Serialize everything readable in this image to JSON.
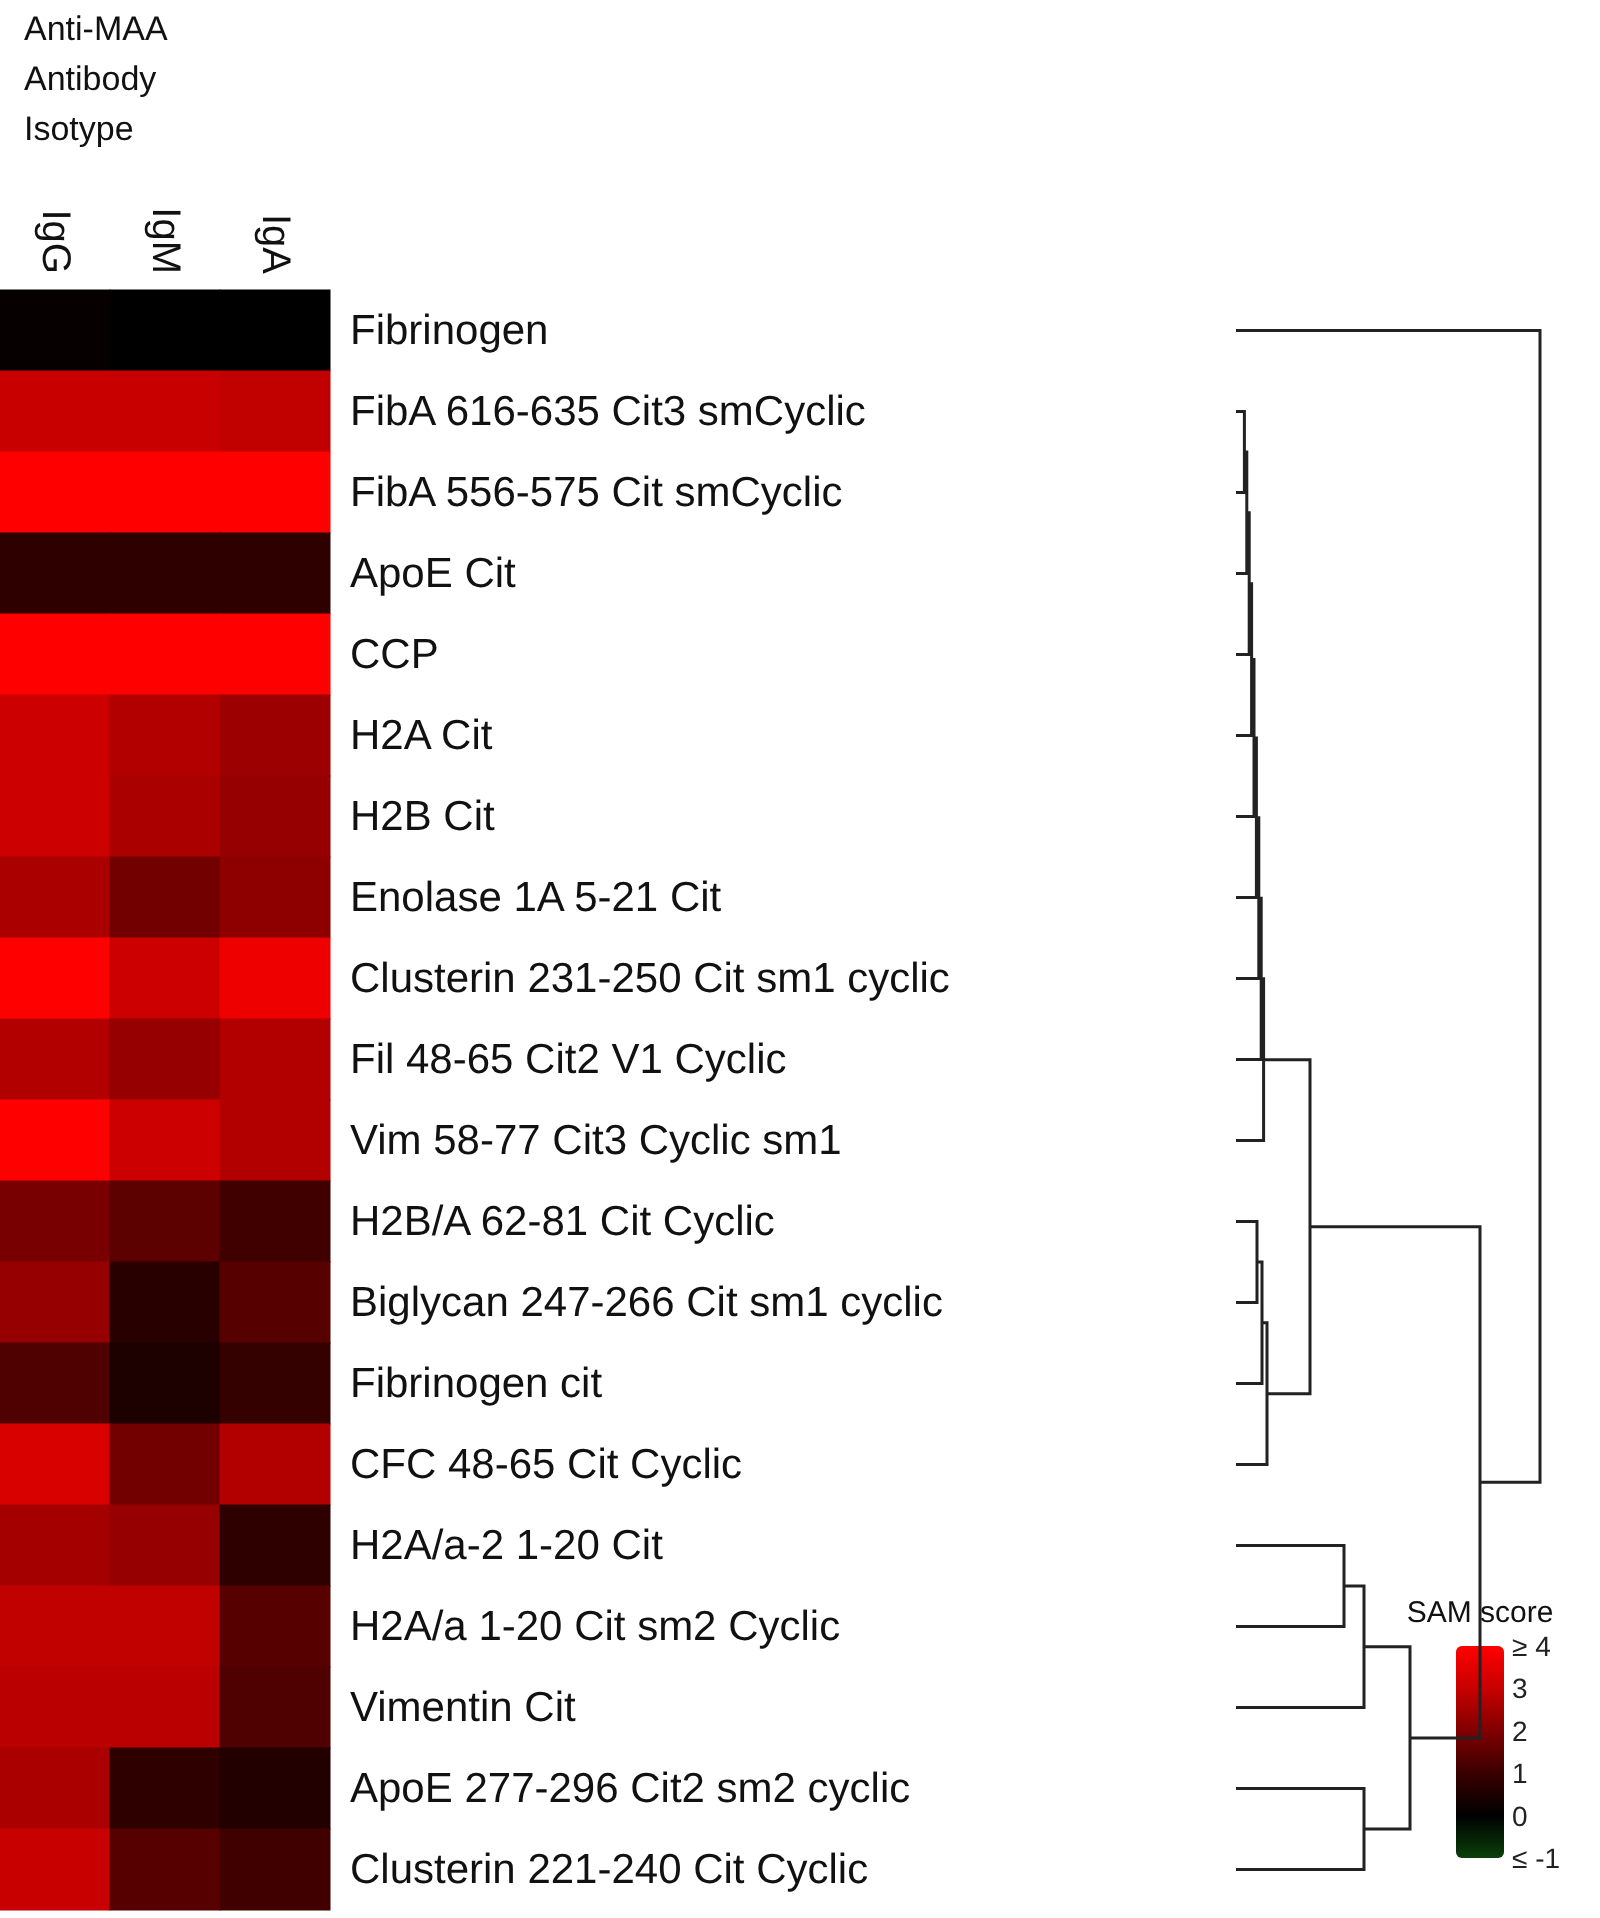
{
  "chart_data": {
    "type": "heatmap",
    "xlabel": "Anti-MAA Antibody Isotype",
    "clabel": "SAM score",
    "categories": [
      "IgG",
      "IgM",
      "IgA"
    ],
    "y_categories": [
      "Fibrinogen",
      "FibA 616-635 Cit3 smCyclic",
      "FibA 556-575 Cit smCyclic",
      "ApoE Cit",
      "CCP",
      "H2A Cit",
      "H2B Cit",
      "Enolase 1A 5-21 Cit",
      "Clusterin 231-250 Cit sm1 cyclic",
      "Fil 48-65 Cit2 V1 Cyclic",
      "Vim 58-77 Cit3 Cyclic sm1",
      "H2B/A 62-81 Cit Cyclic",
      "Biglycan 247-266 Cit sm1 cyclic",
      "Fibrinogen cit",
      "CFC 48-65 Cit Cyclic",
      "H2A/a-2 1-20 Cit",
      "H2A/a 1-20 Cit sm2 Cyclic",
      "Vimentin Cit",
      "ApoE 277-296 Cit2 sm2 cyclic",
      "Clusterin 221-240 Cit Cyclic"
    ],
    "cells": [
      [
        0.1,
        0,
        0
      ],
      [
        3,
        3,
        2.9
      ],
      [
        4,
        4,
        4
      ],
      [
        0.8,
        0.8,
        0.8
      ],
      [
        4,
        4,
        4
      ],
      [
        3.1,
        2.7,
        2.4
      ],
      [
        3.1,
        2.6,
        2.3
      ],
      [
        2.6,
        1.8,
        2.2
      ],
      [
        4,
        3.1,
        3.7
      ],
      [
        2.7,
        2.3,
        2.7
      ],
      [
        4,
        3.1,
        2.7
      ],
      [
        1.9,
        1.5,
        1.1
      ],
      [
        2.3,
        0.7,
        1.4
      ],
      [
        1.3,
        0.5,
        0.9
      ],
      [
        3.3,
        1.8,
        2.7
      ],
      [
        2.5,
        2.3,
        0.8
      ],
      [
        2.9,
        2.9,
        1.4
      ],
      [
        2.8,
        2.8,
        1.3
      ],
      [
        2.6,
        0.8,
        0.6
      ],
      [
        3,
        1.4,
        1.1
      ]
    ],
    "clim": [
      -1,
      4
    ],
    "cticks": [
      {
        "value": -1,
        "label": "≤ -1"
      },
      0,
      1,
      2,
      3,
      {
        "value": 4,
        "label": "≥ 4"
      }
    ]
  }
}
